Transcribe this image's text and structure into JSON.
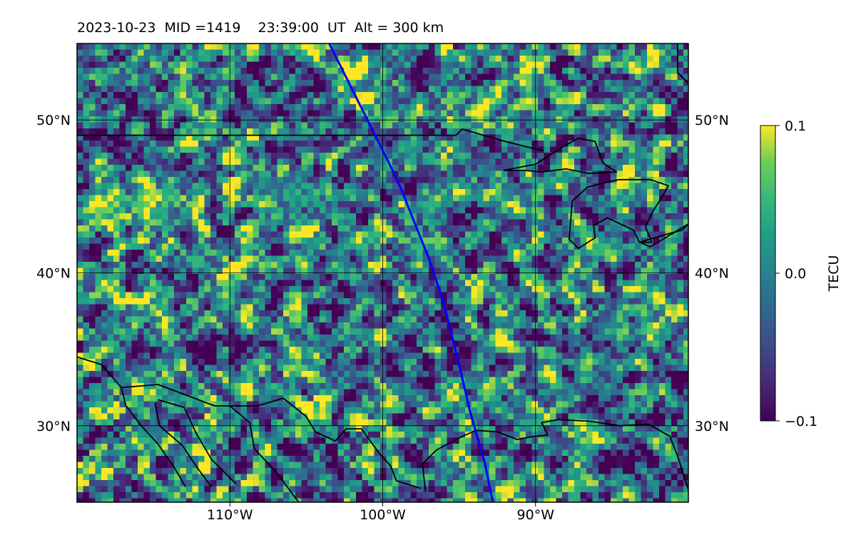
{
  "title": "2023-10-23  MID =1419    23:39:00  UT  Alt = 300 km",
  "map": {
    "lon_range": [
      -120,
      -80
    ],
    "lat_range": [
      25,
      55
    ],
    "lon_ticks": [
      {
        "value": -110,
        "label": "110°W"
      },
      {
        "value": -100,
        "label": "100°W"
      },
      {
        "value": -90,
        "label": "90°W"
      }
    ],
    "lat_ticks": [
      {
        "value": 30,
        "label": "30°N"
      },
      {
        "value": 40,
        "label": "40°N"
      },
      {
        "value": 50,
        "label": "50°N"
      }
    ],
    "grid": true,
    "field_colormap": "viridis",
    "satellite_track_color": "#0000ff",
    "coastline_color": "#000000",
    "satellite_track": [
      [
        -103.5,
        55
      ],
      [
        -102,
        52
      ],
      [
        -100.5,
        49
      ],
      [
        -99.5,
        47
      ],
      [
        -98.8,
        45.5
      ],
      [
        -97.8,
        43
      ],
      [
        -97,
        41
      ],
      [
        -96,
        38
      ],
      [
        -95,
        34
      ],
      [
        -94.3,
        31
      ],
      [
        -93.3,
        27.5
      ],
      [
        -92.8,
        25
      ]
    ],
    "features": [
      {
        "name": "us-canada-border",
        "points": [
          [
            -120,
            49
          ],
          [
            -95.2,
            49
          ],
          [
            -94.8,
            49.4
          ],
          [
            -92,
            48.6
          ],
          [
            -90,
            48.1
          ],
          [
            -89.5,
            48
          ]
        ]
      },
      {
        "name": "lake-superior",
        "points": [
          [
            -92.1,
            46.7
          ],
          [
            -90,
            47.1
          ],
          [
            -88.3,
            48.2
          ],
          [
            -87.2,
            48.8
          ],
          [
            -86.1,
            48.6
          ],
          [
            -85.6,
            47.2
          ],
          [
            -84.7,
            46.6
          ],
          [
            -86.5,
            46.5
          ],
          [
            -88,
            46.8
          ],
          [
            -89.6,
            46.6
          ],
          [
            -90.8,
            46.7
          ],
          [
            -92.1,
            46.7
          ]
        ]
      },
      {
        "name": "lake-michigan-huron",
        "points": [
          [
            -84.5,
            46.1
          ],
          [
            -82.5,
            46.1
          ],
          [
            -81.3,
            45.7
          ],
          [
            -81.7,
            45.0
          ],
          [
            -82.4,
            43.9
          ],
          [
            -82.8,
            43.0
          ],
          [
            -82.4,
            42.0
          ],
          [
            -83.2,
            42.0
          ],
          [
            -83.6,
            42.8
          ],
          [
            -85.3,
            43.6
          ],
          [
            -86.2,
            43.1
          ],
          [
            -86.1,
            42.3
          ],
          [
            -87.2,
            41.6
          ],
          [
            -87.8,
            42.2
          ],
          [
            -87.6,
            44.7
          ],
          [
            -86.6,
            45.6
          ],
          [
            -85.5,
            45.9
          ],
          [
            -84.5,
            46.1
          ]
        ]
      },
      {
        "name": "lake-erie-ontario",
        "points": [
          [
            -83.2,
            42.0
          ],
          [
            -81.5,
            42.5
          ],
          [
            -80.4,
            42.8
          ],
          [
            -80,
            43.2
          ],
          [
            -82.5,
            41.7
          ],
          [
            -83.2,
            42.0
          ]
        ]
      },
      {
        "name": "hudson-bay-coast",
        "points": [
          [
            -80.7,
            55
          ],
          [
            -80.7,
            53.1
          ],
          [
            -80,
            52.4
          ]
        ]
      },
      {
        "name": "gulf-coast",
        "points": [
          [
            -80,
            25.8
          ],
          [
            -80.7,
            28
          ],
          [
            -81.2,
            29.3
          ],
          [
            -82.6,
            30.1
          ],
          [
            -84.5,
            30
          ],
          [
            -86.5,
            30.3
          ],
          [
            -88.5,
            30.4
          ],
          [
            -89.6,
            30.2
          ],
          [
            -89.2,
            29.4
          ],
          [
            -90.1,
            29.3
          ],
          [
            -91.2,
            29.1
          ],
          [
            -92.5,
            29.6
          ],
          [
            -93.9,
            29.7
          ],
          [
            -94.8,
            29.3
          ],
          [
            -96.5,
            28.4
          ],
          [
            -97.4,
            27.5
          ],
          [
            -97.3,
            26.6
          ],
          [
            -97.2,
            25.7
          ]
        ]
      },
      {
        "name": "mexico-border",
        "points": [
          [
            -117.1,
            32.5
          ],
          [
            -114.7,
            32.7
          ],
          [
            -111,
            31.3
          ],
          [
            -108.2,
            31.3
          ],
          [
            -106.5,
            31.8
          ],
          [
            -105,
            30.6
          ],
          [
            -104.4,
            29.6
          ],
          [
            -103.1,
            29
          ],
          [
            -102.4,
            29.8
          ],
          [
            -101.4,
            29.8
          ],
          [
            -100.3,
            28.3
          ],
          [
            -99.5,
            27.4
          ],
          [
            -99.1,
            26.4
          ],
          [
            -97.5,
            25.9
          ]
        ]
      },
      {
        "name": "pacific-coast",
        "points": [
          [
            -120,
            34.5
          ],
          [
            -118.4,
            34
          ],
          [
            -117.1,
            32.5
          ],
          [
            -116.8,
            31.3
          ],
          [
            -115.8,
            30
          ],
          [
            -114.7,
            28.8
          ],
          [
            -113.6,
            27.2
          ],
          [
            -112.9,
            26
          ]
        ]
      },
      {
        "name": "gulf-of-california-east",
        "points": [
          [
            -114.7,
            31.7
          ],
          [
            -113,
            31.2
          ],
          [
            -112.2,
            29.5
          ],
          [
            -111.2,
            27.8
          ],
          [
            -109.6,
            26.2
          ]
        ]
      },
      {
        "name": "baja-gulf-shore",
        "points": [
          [
            -114.9,
            31.5
          ],
          [
            -114.6,
            30
          ],
          [
            -113.1,
            28.7
          ],
          [
            -112.1,
            27.2
          ],
          [
            -111.2,
            26
          ]
        ]
      },
      {
        "name": "mexico-inland-line",
        "points": [
          [
            -110,
            31.3
          ],
          [
            -108.7,
            30.2
          ],
          [
            -108.4,
            28.5
          ],
          [
            -107,
            27
          ],
          [
            -105.5,
            25
          ]
        ]
      }
    ]
  },
  "colorbar": {
    "label": "TECU",
    "min": -0.1,
    "max": 0.1,
    "ticks": [
      {
        "value": 0.1,
        "label": "0.1"
      },
      {
        "value": 0.0,
        "label": "0.0"
      },
      {
        "value": -0.1,
        "label": "−0.1"
      }
    ]
  }
}
